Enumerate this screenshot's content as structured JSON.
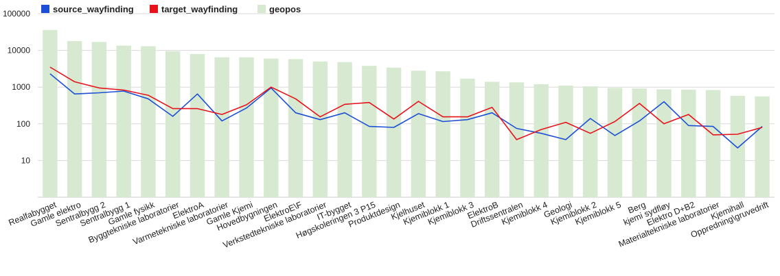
{
  "chart_data": {
    "type": "bar",
    "scale": "log",
    "ylim": [
      1,
      100000
    ],
    "yticks": [
      {
        "value": 10,
        "label": "10"
      },
      {
        "value": 100,
        "label": "100"
      },
      {
        "value": 1000,
        "label": "1000"
      },
      {
        "value": 10000,
        "label": "10000"
      },
      {
        "value": 100000,
        "label": "100000"
      }
    ],
    "grid": true,
    "legend_position": "top-left",
    "categories": [
      "Realfabygget",
      "Gamle elektro",
      "Sentralbygg 2",
      "Sentralbygg 1",
      "Gamle fysikk",
      "Byggtekniske laboratorier",
      "ElektroA",
      "Varmetekniske laboratorier",
      "Gamle Kjemi",
      "Hovedbygningen",
      "ElektroE\\F",
      "Verkstedtekniske laboratorier",
      "IT-bygget",
      "Høgskoleringen 3 P15",
      "Produktdesign",
      "Kjelhuset",
      "Kjemiblokk 1",
      "Kjemiblokk 3",
      "ElektroB",
      "Driftssentralen",
      "Kjemiblokk 4",
      "Geologi",
      "Kjemiblokk 2",
      "Kjemiblokk 5",
      "Berg",
      "kjemi sydfløy",
      "Elektro D+B2",
      "Materialtekniske laboratorier",
      "Kjemihall",
      "Oppredning\\gruvedrift"
    ],
    "series": [
      {
        "name": "source_wayfinding",
        "render": "line",
        "color": "#1c4fd6",
        "values": [
          2300,
          650,
          700,
          780,
          480,
          160,
          650,
          120,
          270,
          950,
          200,
          130,
          200,
          85,
          80,
          190,
          115,
          130,
          200,
          75,
          55,
          37,
          140,
          48,
          120,
          400,
          90,
          85,
          22,
          85
        ]
      },
      {
        "name": "target_wayfinding",
        "render": "line",
        "color": "#e8101a",
        "values": [
          3500,
          1400,
          950,
          830,
          600,
          260,
          260,
          180,
          330,
          1000,
          480,
          155,
          340,
          380,
          135,
          410,
          155,
          155,
          280,
          37,
          70,
          110,
          55,
          115,
          360,
          100,
          180,
          50,
          52,
          80
        ]
      },
      {
        "name": "geopos",
        "render": "bar",
        "color": "#d7ead1",
        "values": [
          36000,
          18000,
          17000,
          13500,
          13000,
          9500,
          8000,
          6500,
          6500,
          6000,
          5800,
          5000,
          4800,
          3800,
          3400,
          2800,
          2700,
          1700,
          1400,
          1350,
          1200,
          1100,
          1050,
          950,
          920,
          870,
          850,
          830,
          580,
          560
        ]
      }
    ]
  }
}
